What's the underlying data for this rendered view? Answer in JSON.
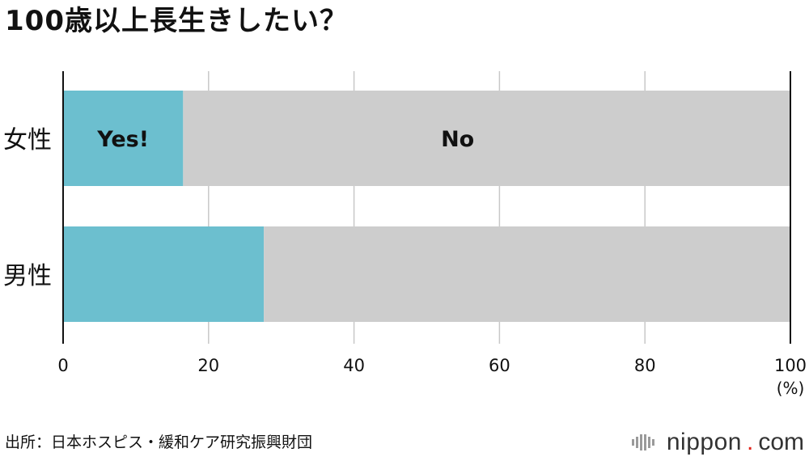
{
  "chart_data": {
    "type": "bar",
    "orientation": "horizontal",
    "stacked": true,
    "title": "100歳以上長生きしたい？",
    "categories": [
      "女性",
      "男性"
    ],
    "series": [
      {
        "name": "Yes!",
        "color": "#6cbfcf",
        "values": [
          16.5,
          27.6
        ]
      },
      {
        "name": "No",
        "color": "#cdcdcd",
        "values": [
          83.5,
          72.4
        ]
      }
    ],
    "xlim": [
      0,
      100
    ],
    "xticks": [
      "0",
      "20",
      "40",
      "60",
      "80",
      "100"
    ],
    "xunit": "(%)",
    "grid": true,
    "legend": "inline labels on first bar"
  },
  "source": "出所：日本ホスピス・緩和ケア研究振興財団",
  "brand": {
    "name": "nippon",
    "dot": ".",
    "tld": "com",
    "accent": "#e2231a"
  }
}
